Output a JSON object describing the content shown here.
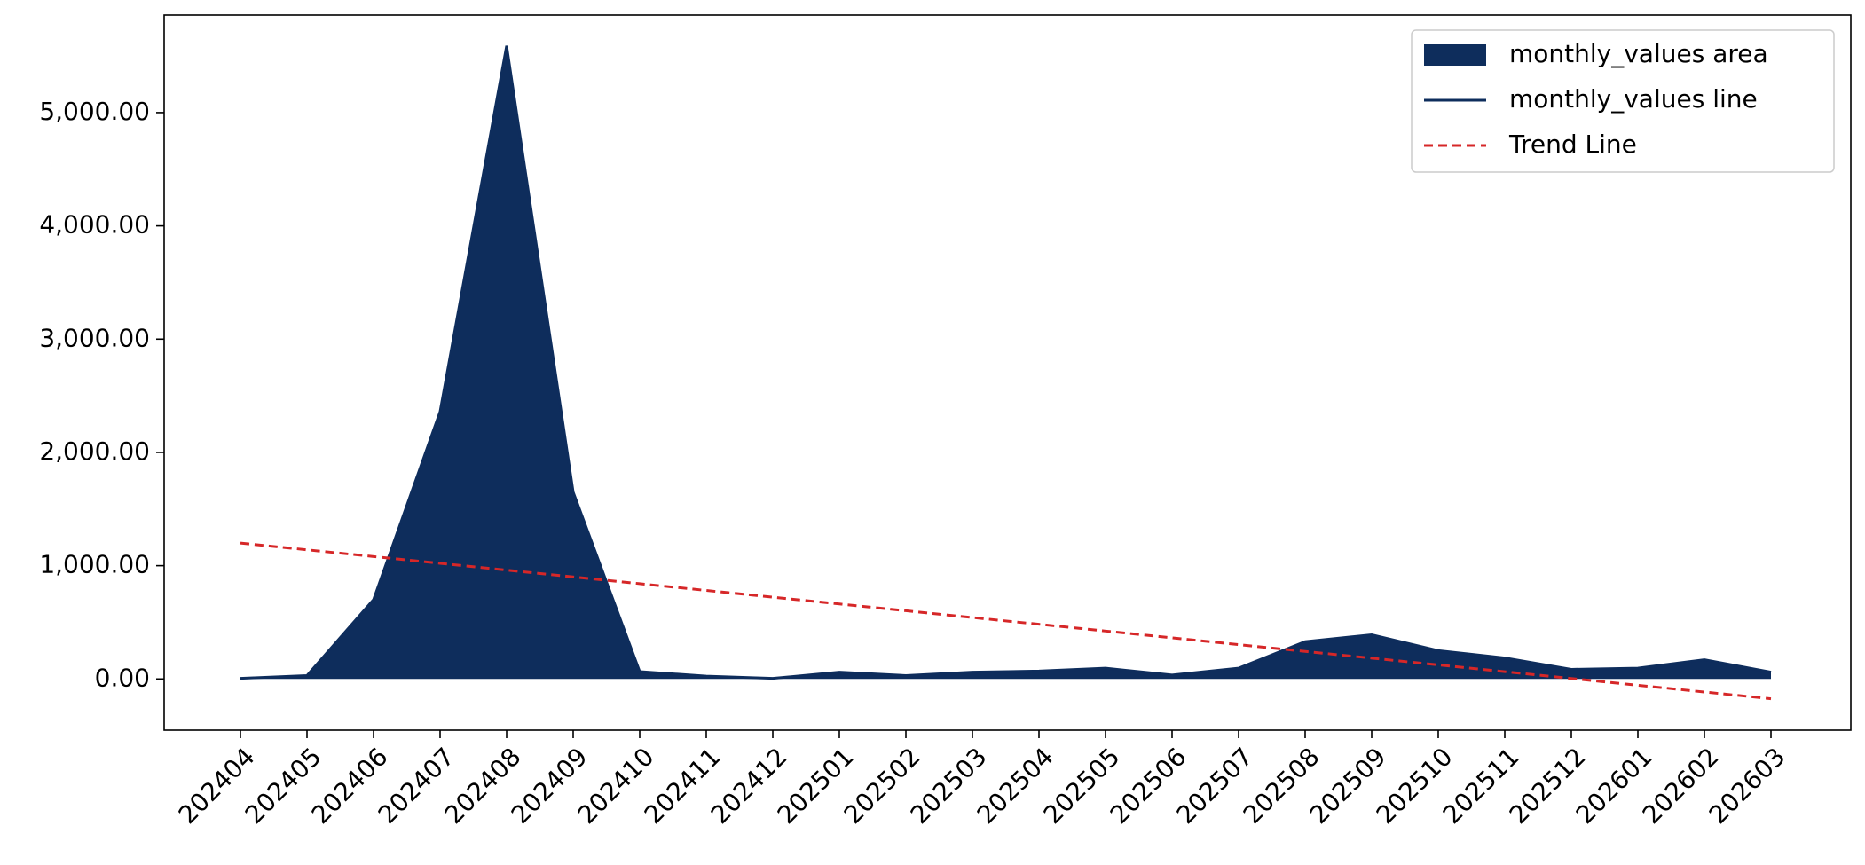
{
  "chart_data": {
    "type": "area",
    "categories": [
      "202404",
      "202405",
      "202406",
      "202407",
      "202408",
      "202409",
      "202410",
      "202411",
      "202412",
      "202501",
      "202502",
      "202503",
      "202504",
      "202505",
      "202506",
      "202507",
      "202508",
      "202509",
      "202510",
      "202511",
      "202512",
      "202601",
      "202602",
      "202603"
    ],
    "series": [
      {
        "name": "monthly_values area",
        "kind": "area",
        "color": "#0e2d5c",
        "values": [
          5,
          30,
          700,
          2360,
          5590,
          1650,
          65,
          25,
          5,
          60,
          30,
          60,
          70,
          95,
          35,
          95,
          330,
          390,
          250,
          185,
          85,
          95,
          170,
          60
        ]
      },
      {
        "name": "monthly_values line",
        "kind": "line",
        "color": "#0e2d5c",
        "values": [
          5,
          30,
          700,
          2360,
          5590,
          1650,
          65,
          25,
          5,
          60,
          30,
          60,
          70,
          95,
          35,
          95,
          330,
          390,
          250,
          185,
          85,
          95,
          170,
          60
        ]
      },
      {
        "name": "Trend Line",
        "kind": "dashed",
        "color": "#d62728",
        "values": [
          1200,
          1140.2,
          1080.4,
          1020.7,
          960.9,
          901.1,
          841.3,
          781.5,
          721.7,
          662.0,
          602.2,
          542.4,
          482.6,
          422.8,
          363.0,
          303.3,
          243.5,
          183.7,
          123.9,
          64.1,
          4.3,
          -55.4,
          -115.2,
          -175
        ]
      }
    ],
    "ylim": [
      -452,
      5861
    ],
    "yticks": [
      {
        "value": 0,
        "label": "0.00"
      },
      {
        "value": 1000,
        "label": "1,000.00"
      },
      {
        "value": 2000,
        "label": "2,000.00"
      },
      {
        "value": 3000,
        "label": "3,000.00"
      },
      {
        "value": 4000,
        "label": "4,000.00"
      },
      {
        "value": 5000,
        "label": "5,000.00"
      }
    ],
    "grid": false,
    "legend": "upper right"
  }
}
